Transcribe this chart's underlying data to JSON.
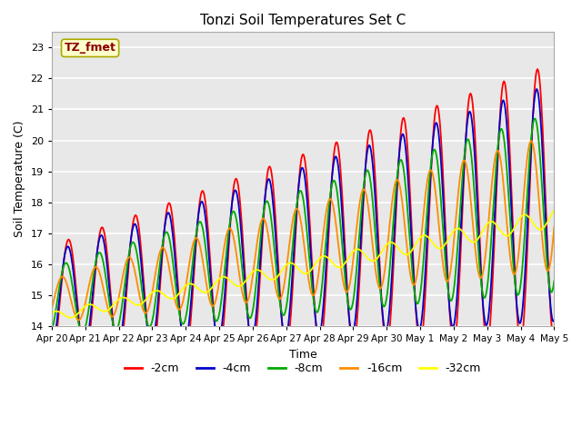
{
  "title": "Tonzi Soil Temperatures Set C",
  "xlabel": "Time",
  "ylabel": "Soil Temperature (C)",
  "ylim": [
    14.0,
    23.5
  ],
  "annotation": "TZ_fmet",
  "annotation_color": "#8B0000",
  "annotation_bg": "#FFFFCC",
  "series_colors": [
    "#FF0000",
    "#0000CC",
    "#00AA00",
    "#FF8C00",
    "#FFFF00"
  ],
  "series_labels": [
    "-2cm",
    "-4cm",
    "-8cm",
    "-16cm",
    "-32cm"
  ],
  "fig_bg": "#FFFFFF",
  "plot_bg": "#E8E8E8",
  "grid_color": "#FFFFFF",
  "tick_labels": [
    "Apr 20",
    "Apr 21",
    "Apr 22",
    "Apr 23",
    "Apr 24",
    "Apr 25",
    "Apr 26",
    "Apr 27",
    "Apr 28",
    "Apr 29",
    "Apr 30",
    "May 1",
    "May 2",
    "May 3",
    "May 4",
    "May 5"
  ],
  "n_points": 721,
  "days": 15
}
